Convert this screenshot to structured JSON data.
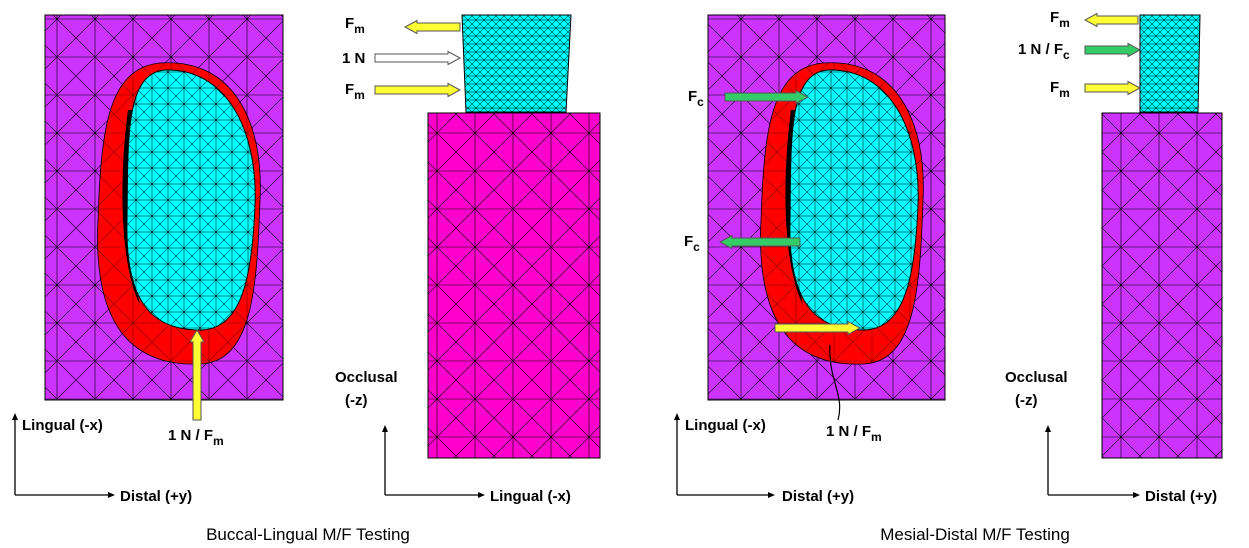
{
  "panels": [
    {
      "caption": "Buccal-Lingual M/F Testing",
      "cross_section": {
        "force_labels": [
          {
            "text": "1 N / F",
            "sub": "m"
          }
        ],
        "axes": {
          "vertical": "Lingual (-x)",
          "horizontal": "Distal (+y)"
        }
      },
      "side_view": {
        "force_labels": [
          {
            "text": "F",
            "sub": "m"
          },
          {
            "text": "1 N"
          },
          {
            "text": "F",
            "sub": "m"
          }
        ],
        "axes": {
          "vertical": [
            "Occlusal",
            "(-z)"
          ],
          "horizontal": "Lingual (-x)"
        }
      }
    },
    {
      "caption": "Mesial-Distal M/F Testing",
      "cross_section": {
        "force_labels": [
          {
            "text": "F",
            "sub": "c"
          },
          {
            "text": "F",
            "sub": "c"
          },
          {
            "text": "1 N / F",
            "sub": "m"
          }
        ],
        "axes": {
          "vertical": "Lingual (-x)",
          "horizontal": "Distal (+y)"
        }
      },
      "side_view": {
        "force_labels": [
          {
            "text": "F",
            "sub": "m"
          },
          {
            "text": "1 N / F",
            "sub": "c"
          },
          {
            "text": "F",
            "sub": "m"
          }
        ],
        "axes": {
          "vertical": [
            "Occlusal",
            "(-z)"
          ],
          "horizontal": "Distal (+y)"
        }
      }
    }
  ]
}
